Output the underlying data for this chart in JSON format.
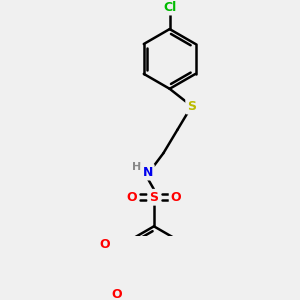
{
  "background_color": "#f0f0f0",
  "bond_color": "#000000",
  "bond_width": 1.8,
  "atom_colors": {
    "Cl": "#00bb00",
    "S_thio": "#bbbb00",
    "N": "#0000ee",
    "H": "#888888",
    "S_sulfo": "#ff0000",
    "O": "#ff0000",
    "C": "#000000"
  },
  "font_size": 8,
  "figsize": [
    3.0,
    3.0
  ],
  "dpi": 100
}
